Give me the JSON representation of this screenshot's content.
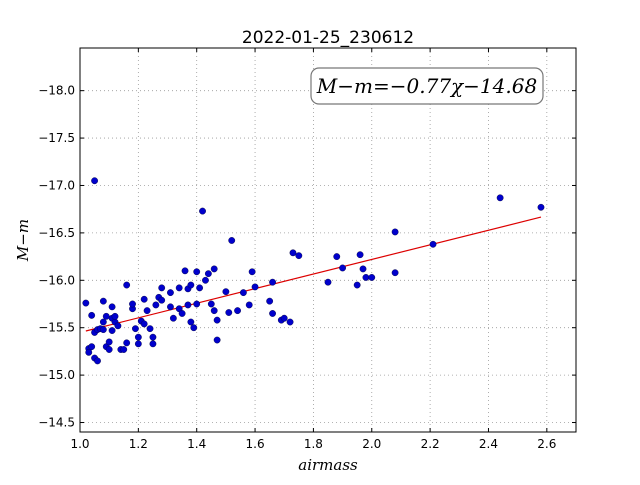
{
  "chart_data": {
    "type": "scatter",
    "title": "2022-01-25_230612",
    "xlabel": "airmass",
    "ylabel": "M−m",
    "xlim": [
      1.0,
      2.7
    ],
    "ylim": [
      -18.45,
      -14.4
    ],
    "y_inverted": true,
    "grid": true,
    "xticks": [
      "1.0",
      "1.2",
      "1.4",
      "1.6",
      "1.8",
      "2.0",
      "2.2",
      "2.4",
      "2.6"
    ],
    "xtick_values": [
      1.0,
      1.2,
      1.4,
      1.6,
      1.8,
      2.0,
      2.2,
      2.4,
      2.6
    ],
    "yticks": [
      "−14.5",
      "−15.0",
      "−15.5",
      "−16.0",
      "−16.5",
      "−17.0",
      "−17.5",
      "−18.0"
    ],
    "ytick_values": [
      -14.5,
      -15.0,
      -15.5,
      -16.0,
      -16.5,
      -17.0,
      -17.5,
      -18.0
    ],
    "annotation": "M−m=−0.77χ−14.68",
    "colors": {
      "points": "#0000cc",
      "fit_line": "#dd0000",
      "grid": "#9a9a9a"
    },
    "fit": {
      "slope": -0.77,
      "intercept": -14.68,
      "x_range": [
        1.02,
        2.58
      ]
    },
    "points": [
      {
        "x": 1.02,
        "y": -15.76
      },
      {
        "x": 1.03,
        "y": -15.28
      },
      {
        "x": 1.03,
        "y": -15.24
      },
      {
        "x": 1.04,
        "y": -15.3
      },
      {
        "x": 1.04,
        "y": -15.63
      },
      {
        "x": 1.05,
        "y": -15.18
      },
      {
        "x": 1.05,
        "y": -15.45
      },
      {
        "x": 1.05,
        "y": -17.05
      },
      {
        "x": 1.06,
        "y": -15.15
      },
      {
        "x": 1.06,
        "y": -15.48
      },
      {
        "x": 1.07,
        "y": -15.49
      },
      {
        "x": 1.08,
        "y": -15.48
      },
      {
        "x": 1.08,
        "y": -15.56
      },
      {
        "x": 1.08,
        "y": -15.78
      },
      {
        "x": 1.09,
        "y": -15.62
      },
      {
        "x": 1.09,
        "y": -15.3
      },
      {
        "x": 1.1,
        "y": -15.27
      },
      {
        "x": 1.1,
        "y": -15.35
      },
      {
        "x": 1.11,
        "y": -15.6
      },
      {
        "x": 1.11,
        "y": -15.47
      },
      {
        "x": 1.11,
        "y": -15.72
      },
      {
        "x": 1.12,
        "y": -15.56
      },
      {
        "x": 1.12,
        "y": -15.62
      },
      {
        "x": 1.13,
        "y": -15.52
      },
      {
        "x": 1.14,
        "y": -15.27
      },
      {
        "x": 1.15,
        "y": -15.27
      },
      {
        "x": 1.16,
        "y": -15.95
      },
      {
        "x": 1.16,
        "y": -15.34
      },
      {
        "x": 1.18,
        "y": -15.7
      },
      {
        "x": 1.18,
        "y": -15.75
      },
      {
        "x": 1.19,
        "y": -15.49
      },
      {
        "x": 1.2,
        "y": -15.33
      },
      {
        "x": 1.2,
        "y": -15.4
      },
      {
        "x": 1.21,
        "y": -15.57
      },
      {
        "x": 1.22,
        "y": -15.54
      },
      {
        "x": 1.22,
        "y": -15.8
      },
      {
        "x": 1.23,
        "y": -15.68
      },
      {
        "x": 1.24,
        "y": -15.49
      },
      {
        "x": 1.25,
        "y": -15.4
      },
      {
        "x": 1.25,
        "y": -15.33
      },
      {
        "x": 1.26,
        "y": -15.74
      },
      {
        "x": 1.27,
        "y": -15.82
      },
      {
        "x": 1.28,
        "y": -15.92
      },
      {
        "x": 1.28,
        "y": -15.79
      },
      {
        "x": 1.31,
        "y": -15.72
      },
      {
        "x": 1.31,
        "y": -15.87
      },
      {
        "x": 1.32,
        "y": -15.6
      },
      {
        "x": 1.34,
        "y": -15.92
      },
      {
        "x": 1.34,
        "y": -15.7
      },
      {
        "x": 1.35,
        "y": -15.65
      },
      {
        "x": 1.36,
        "y": -16.1
      },
      {
        "x": 1.37,
        "y": -15.74
      },
      {
        "x": 1.37,
        "y": -15.91
      },
      {
        "x": 1.38,
        "y": -15.95
      },
      {
        "x": 1.38,
        "y": -15.56
      },
      {
        "x": 1.39,
        "y": -15.5
      },
      {
        "x": 1.4,
        "y": -15.75
      },
      {
        "x": 1.4,
        "y": -16.09
      },
      {
        "x": 1.41,
        "y": -15.92
      },
      {
        "x": 1.42,
        "y": -16.73
      },
      {
        "x": 1.43,
        "y": -16.0
      },
      {
        "x": 1.44,
        "y": -16.07
      },
      {
        "x": 1.45,
        "y": -15.75
      },
      {
        "x": 1.46,
        "y": -15.68
      },
      {
        "x": 1.46,
        "y": -16.12
      },
      {
        "x": 1.47,
        "y": -15.37
      },
      {
        "x": 1.47,
        "y": -15.58
      },
      {
        "x": 1.5,
        "y": -15.88
      },
      {
        "x": 1.51,
        "y": -15.66
      },
      {
        "x": 1.52,
        "y": -16.42
      },
      {
        "x": 1.54,
        "y": -15.68
      },
      {
        "x": 1.56,
        "y": -15.87
      },
      {
        "x": 1.58,
        "y": -15.74
      },
      {
        "x": 1.59,
        "y": -16.09
      },
      {
        "x": 1.6,
        "y": -15.93
      },
      {
        "x": 1.65,
        "y": -15.78
      },
      {
        "x": 1.66,
        "y": -15.65
      },
      {
        "x": 1.66,
        "y": -15.98
      },
      {
        "x": 1.69,
        "y": -15.58
      },
      {
        "x": 1.7,
        "y": -15.6
      },
      {
        "x": 1.72,
        "y": -15.56
      },
      {
        "x": 1.73,
        "y": -16.29
      },
      {
        "x": 1.75,
        "y": -16.26
      },
      {
        "x": 1.85,
        "y": -15.98
      },
      {
        "x": 1.88,
        "y": -16.25
      },
      {
        "x": 1.9,
        "y": -16.13
      },
      {
        "x": 1.95,
        "y": -15.95
      },
      {
        "x": 1.96,
        "y": -16.27
      },
      {
        "x": 1.97,
        "y": -16.12
      },
      {
        "x": 1.98,
        "y": -16.03
      },
      {
        "x": 2.0,
        "y": -16.03
      },
      {
        "x": 2.08,
        "y": -16.08
      },
      {
        "x": 2.08,
        "y": -16.51
      },
      {
        "x": 2.21,
        "y": -16.38
      },
      {
        "x": 2.44,
        "y": -16.87
      },
      {
        "x": 2.58,
        "y": -16.77
      }
    ]
  }
}
